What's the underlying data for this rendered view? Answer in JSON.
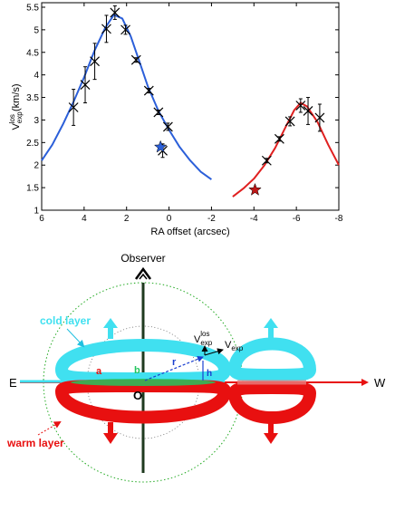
{
  "colors": {
    "blue_fit": "#2b5fd9",
    "red_fit": "#e02020",
    "cyan": "#40e0f0",
    "red": "#e81010",
    "green": "#22c55e",
    "axis": "#000000",
    "dark_axis": "#1f3a1f"
  },
  "chart_data": {
    "type": "scatter",
    "xlabel": "RA offset (arcsec)",
    "ylabel_main": "V",
    "ylabel_sup": "los",
    "ylabel_sub": "exp",
    "ylabel_unit": " (km/s)",
    "xlim": [
      6,
      -8
    ],
    "ylim": [
      1,
      5.6
    ],
    "x_reversed": true,
    "x_ticks": [
      6,
      4,
      2,
      0,
      -2,
      -4,
      -6,
      -8
    ],
    "x_tick_labels": [
      "6",
      "4",
      "2",
      "0",
      "-2",
      "-4",
      "-6",
      "-8"
    ],
    "y_ticks": [
      1,
      1.5,
      2,
      2.5,
      3,
      3.5,
      4,
      4.5,
      5,
      5.5
    ],
    "y_tick_labels": [
      "1",
      "1.5",
      "2",
      "2.5",
      "3",
      "3.5",
      "4",
      "4.5",
      "5",
      "5.5"
    ],
    "series": [
      {
        "color": "#000000",
        "marker": "x",
        "points": [
          {
            "x": 4.5,
            "y": 3.28,
            "err": 0.4
          },
          {
            "x": 3.95,
            "y": 3.78,
            "err": 0.4
          },
          {
            "x": 3.5,
            "y": 4.3,
            "err": 0.4
          },
          {
            "x": 2.95,
            "y": 5.02,
            "err": 0.3
          },
          {
            "x": 2.55,
            "y": 5.38,
            "err": 0.15
          },
          {
            "x": 2.05,
            "y": 5.0,
            "err": 0.1
          },
          {
            "x": 1.55,
            "y": 4.33,
            "err": 0.05
          },
          {
            "x": 0.95,
            "y": 3.65,
            "err": 0.05
          },
          {
            "x": 0.5,
            "y": 3.17,
            "err": 0.05
          },
          {
            "x": 0.05,
            "y": 2.85,
            "err": 0.08
          },
          {
            "x": 0.3,
            "y": 2.32,
            "err": 0.15
          },
          {
            "x": -4.6,
            "y": 2.1,
            "err": 0.05
          },
          {
            "x": -5.2,
            "y": 2.58,
            "err": 0.05
          },
          {
            "x": -5.7,
            "y": 2.97,
            "err": 0.1
          },
          {
            "x": -6.2,
            "y": 3.32,
            "err": 0.15
          },
          {
            "x": -6.55,
            "y": 3.2,
            "err": 0.3
          },
          {
            "x": -7.1,
            "y": 3.05,
            "err": 0.3
          }
        ]
      },
      {
        "color": "#2b5fd9",
        "marker": "star",
        "points": [
          {
            "x": 0.4,
            "y": 2.4
          }
        ]
      },
      {
        "color": "#c01818",
        "marker": "star",
        "points": [
          {
            "x": -4.05,
            "y": 1.45
          }
        ]
      },
      {
        "color": "#2b5fd9",
        "marker": "line",
        "points": [
          {
            "x": 6,
            "y": 2.1
          },
          {
            "x": 5.5,
            "y": 2.45
          },
          {
            "x": 5.0,
            "y": 2.9
          },
          {
            "x": 4.5,
            "y": 3.4
          },
          {
            "x": 4.0,
            "y": 3.95
          },
          {
            "x": 3.5,
            "y": 4.55
          },
          {
            "x": 3.0,
            "y": 5.05
          },
          {
            "x": 2.6,
            "y": 5.33
          },
          {
            "x": 2.2,
            "y": 5.25
          },
          {
            "x": 1.8,
            "y": 4.85
          },
          {
            "x": 1.4,
            "y": 4.3
          },
          {
            "x": 1.0,
            "y": 3.75
          },
          {
            "x": 0.5,
            "y": 3.2
          },
          {
            "x": 0.0,
            "y": 2.78
          },
          {
            "x": -0.5,
            "y": 2.4
          },
          {
            "x": -1.0,
            "y": 2.1
          },
          {
            "x": -1.5,
            "y": 1.85
          },
          {
            "x": -2.0,
            "y": 1.68
          }
        ]
      },
      {
        "color": "#e02020",
        "marker": "line",
        "points": [
          {
            "x": -3.0,
            "y": 1.3
          },
          {
            "x": -3.5,
            "y": 1.48
          },
          {
            "x": -4.0,
            "y": 1.7
          },
          {
            "x": -4.5,
            "y": 2.0
          },
          {
            "x": -5.0,
            "y": 2.38
          },
          {
            "x": -5.5,
            "y": 2.85
          },
          {
            "x": -5.9,
            "y": 3.22
          },
          {
            "x": -6.2,
            "y": 3.38
          },
          {
            "x": -6.5,
            "y": 3.3
          },
          {
            "x": -7.0,
            "y": 2.95
          },
          {
            "x": -7.5,
            "y": 2.45
          },
          {
            "x": -8.0,
            "y": 2.0
          }
        ]
      }
    ]
  },
  "diagram": {
    "observer_label": "Observer",
    "cold_layer_label": "cold layer",
    "warm_layer_label": "warm layer",
    "east_label": "E",
    "west_label": "W",
    "origin_label": "O",
    "a_label": "a",
    "b_label": "b",
    "r_label": "r",
    "h_label": "h",
    "vlos_main": "V",
    "vlos_sup": "los",
    "vlos_sub": "exp",
    "vexp_main": "V",
    "vexp_sub": "exp"
  }
}
